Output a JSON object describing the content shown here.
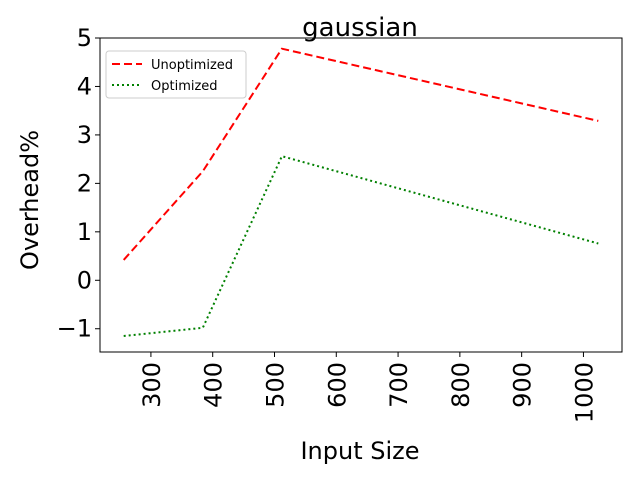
{
  "chart_data": {
    "type": "line",
    "title": "gaussian",
    "xlabel": "Input Size",
    "ylabel": "Overhead%",
    "xlim": [
      217.6,
      1062.4
    ],
    "ylim": [
      -1.48,
      5.0
    ],
    "xticks": [
      300,
      400,
      500,
      600,
      700,
      800,
      900,
      1000
    ],
    "xtick_labels": [
      "300",
      "400",
      "500",
      "600",
      "700",
      "800",
      "900",
      "1000"
    ],
    "yticks": [
      -1,
      0,
      1,
      2,
      3,
      4,
      5
    ],
    "ytick_labels": [
      "−1",
      "0",
      "1",
      "2",
      "3",
      "4",
      "5"
    ],
    "grid": false,
    "legend_position": "upper left",
    "series": [
      {
        "name": "Unoptimized",
        "color": "#ff0000",
        "line_style": "dashed",
        "points": [
          {
            "x": 256,
            "y": 0.42
          },
          {
            "x": 384,
            "y": 2.25
          },
          {
            "x": 512,
            "y": 4.78
          },
          {
            "x": 1024,
            "y": 3.29
          }
        ]
      },
      {
        "name": "Optimized",
        "color": "#008000",
        "line_style": "dotted",
        "points": [
          {
            "x": 256,
            "y": -1.15
          },
          {
            "x": 384,
            "y": -0.98
          },
          {
            "x": 512,
            "y": 2.56
          },
          {
            "x": 1024,
            "y": 0.76
          }
        ]
      }
    ]
  }
}
